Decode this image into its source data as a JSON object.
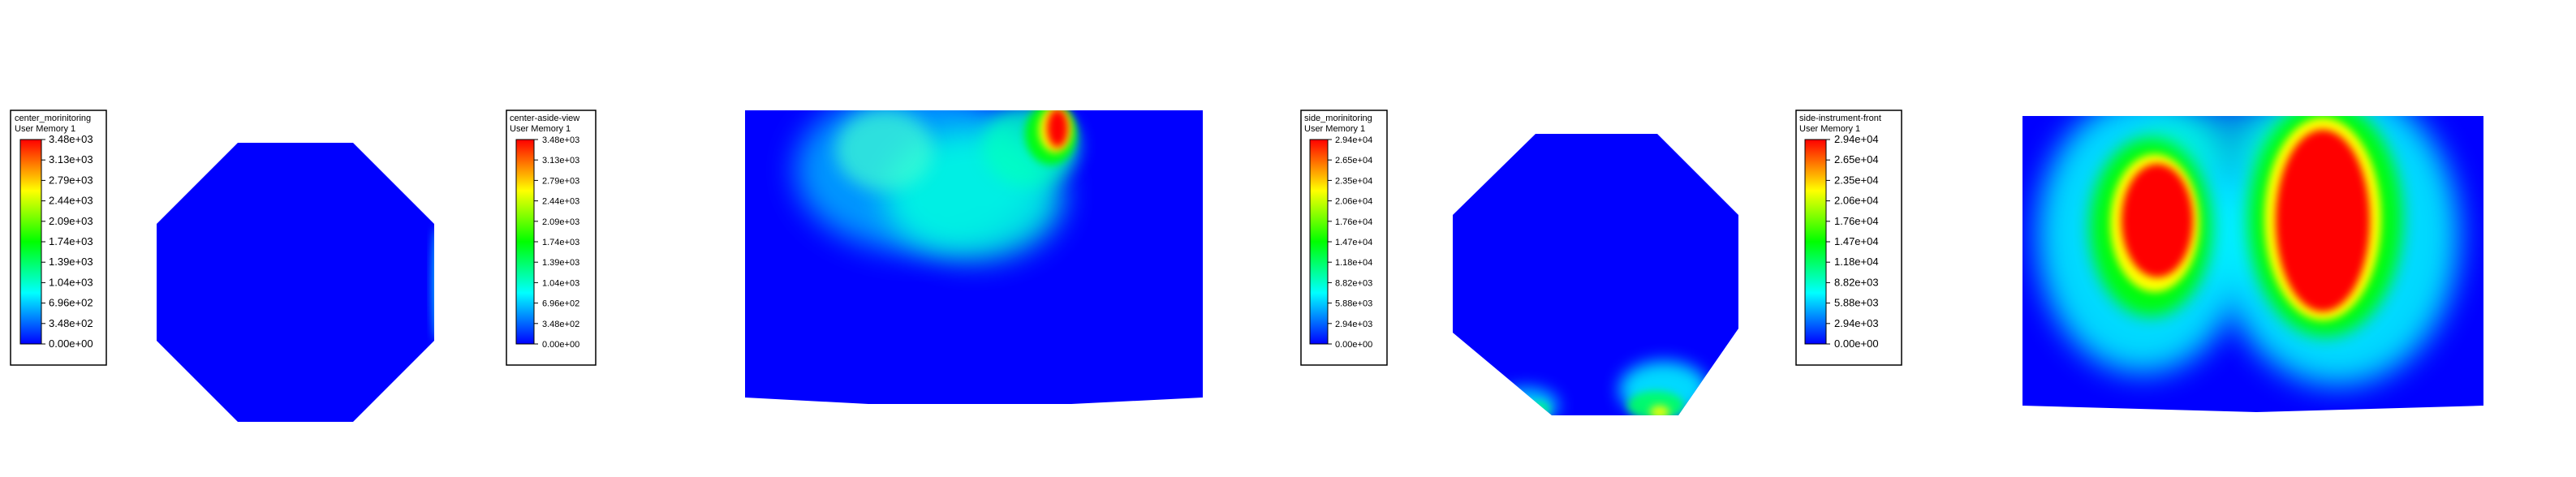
{
  "colors": {
    "background": "#ffffff",
    "field_min": "#0000ff",
    "field_max": "#ff0000",
    "colormap": [
      "#0000ff",
      "#00ffff",
      "#00ff00",
      "#ffff00",
      "#ff0000"
    ]
  },
  "legends": [
    {
      "title": "center_morinitoring",
      "subtitle": "User Memory 1",
      "labels": [
        "3.48e+03",
        "3.13e+03",
        "2.79e+03",
        "2.44e+03",
        "2.09e+03",
        "1.74e+03",
        "1.39e+03",
        "1.04e+03",
        "6.96e+02",
        "3.48e+02",
        "0.00e+00"
      ]
    },
    {
      "title": "center-aside-view",
      "subtitle": "User Memory 1",
      "labels": [
        "3.48e+03",
        "3.13e+03",
        "2.79e+03",
        "2.44e+03",
        "2.09e+03",
        "1.74e+03",
        "1.39e+03",
        "1.04e+03",
        "6.96e+02",
        "3.48e+02",
        "0.00e+00"
      ]
    },
    {
      "title": "side_morinitoring",
      "subtitle": "User Memory 1",
      "labels": [
        "2.94e+04",
        "2.65e+04",
        "2.35e+04",
        "2.06e+04",
        "1.76e+04",
        "1.47e+04",
        "1.18e+04",
        "8.82e+03",
        "5.88e+03",
        "2.94e+03",
        "0.00e+00"
      ]
    },
    {
      "title": "side-instrument-front",
      "subtitle": "User Memory 1",
      "labels": [
        "2.94e+04",
        "2.65e+04",
        "2.35e+04",
        "2.06e+04",
        "1.76e+04",
        "1.47e+04",
        "1.18e+04",
        "8.82e+03",
        "5.88e+03",
        "2.94e+03",
        "0.00e+00"
      ]
    }
  ],
  "plots": [
    {
      "shape": "octagon",
      "view": "center top"
    },
    {
      "shape": "trapezoid",
      "view": "center side"
    },
    {
      "shape": "octagon",
      "view": "side top"
    },
    {
      "shape": "trapezoid",
      "view": "side front"
    }
  ]
}
